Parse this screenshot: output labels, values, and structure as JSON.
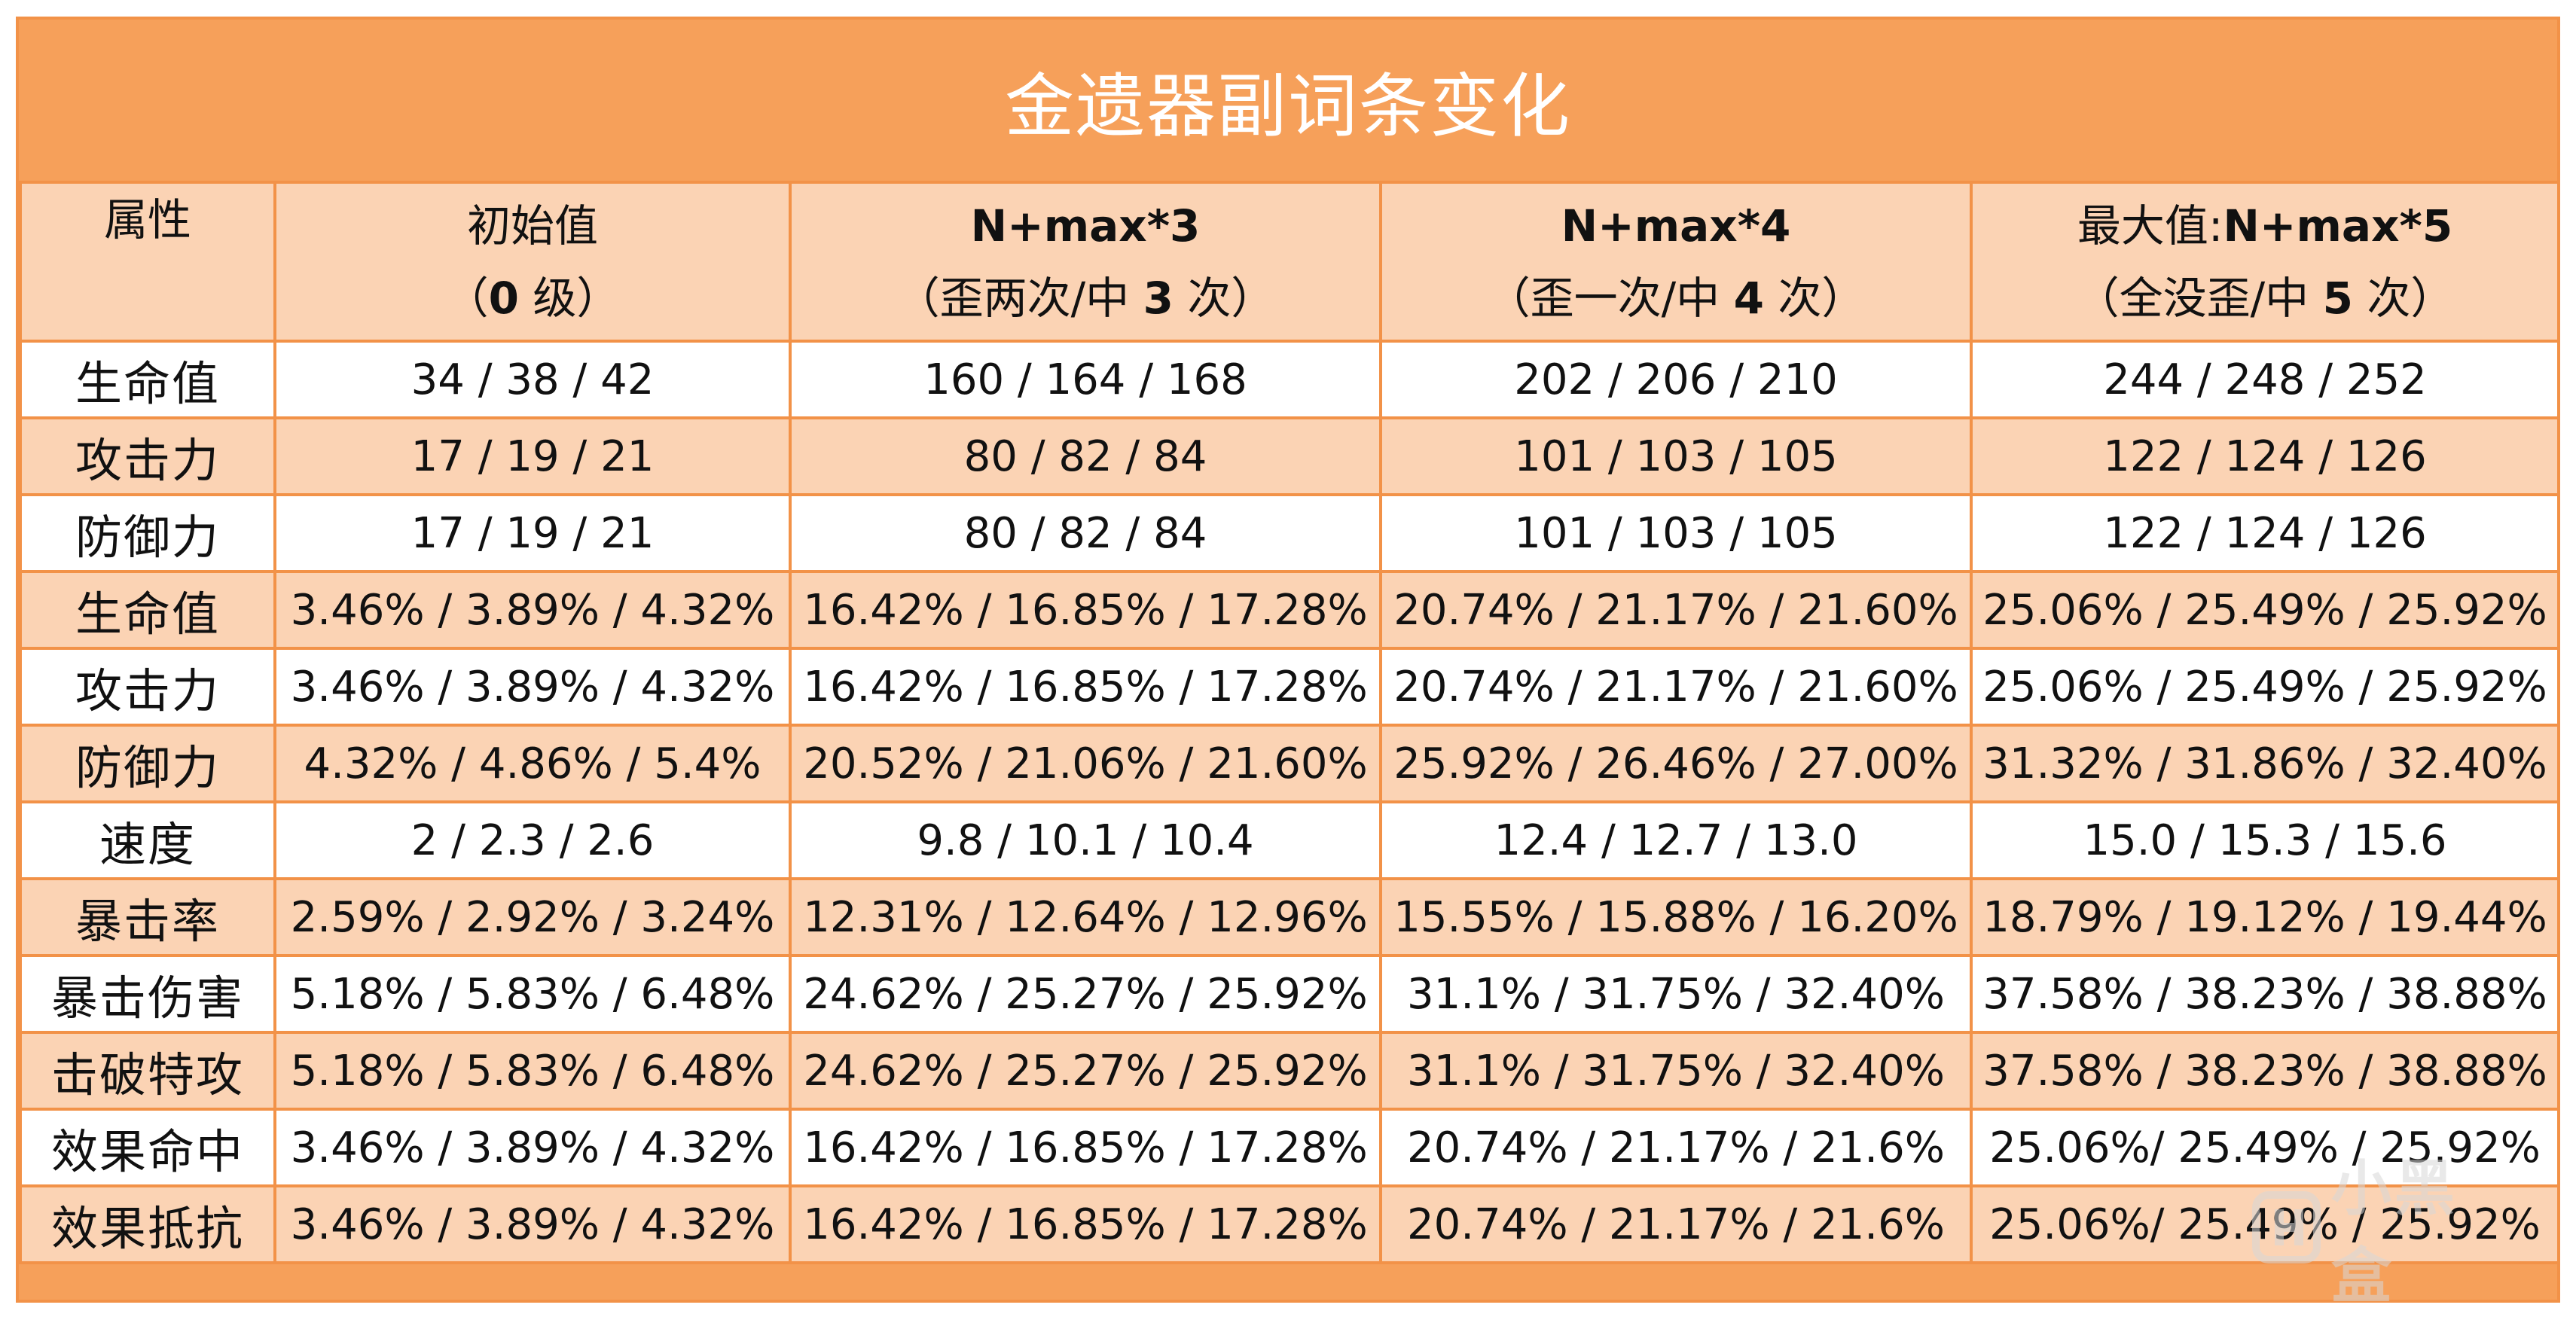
{
  "title": "金遗器副词条变化",
  "header": {
    "attr": {
      "line1": "属性",
      "line2": ""
    },
    "col1": {
      "line1": "初始值",
      "line2_pre": "（",
      "line2_bold": "0",
      "line2_post": " 级）"
    },
    "col2": {
      "line1": "N+max*3",
      "line2_pre": "（歪两次/",
      "line2_mid": "中 ",
      "line2_bold": "3",
      "line2_post": " 次）"
    },
    "col3": {
      "line1": "N+max*4",
      "line2_pre": "（歪一次/",
      "line2_mid": "中 ",
      "line2_bold": "4",
      "line2_post": " 次）"
    },
    "col4": {
      "line1_pre": "最大值:",
      "line1": "N+max*5",
      "line2_pre": "（全没歪/",
      "line2_mid": "中 ",
      "line2_bold": "5",
      "line2_post": " 次）"
    }
  },
  "rows": [
    {
      "attr": "生命值",
      "v0": "34 / 38 / 42",
      "v3": "160 / 164 / 168",
      "v4": "202 / 206 / 210",
      "v5": "244 / 248 / 252"
    },
    {
      "attr": "攻击力",
      "v0": "17 / 19 / 21",
      "v3": "80 / 82 / 84",
      "v4": "101 / 103 / 105",
      "v5": "122 / 124 / 126"
    },
    {
      "attr": "防御力",
      "v0": "17 / 19 / 21",
      "v3": "80 / 82 / 84",
      "v4": "101 / 103 / 105",
      "v5": "122 / 124 / 126"
    },
    {
      "attr": "生命值",
      "v0": "3.46% / 3.89% / 4.32%",
      "v3": "16.42% / 16.85% / 17.28%",
      "v4": "20.74% / 21.17% / 21.60%",
      "v5": "25.06% / 25.49% / 25.92%"
    },
    {
      "attr": "攻击力",
      "v0": "3.46% / 3.89% / 4.32%",
      "v3": "16.42% / 16.85% / 17.28%",
      "v4": "20.74% / 21.17% / 21.60%",
      "v5": "25.06% / 25.49% / 25.92%"
    },
    {
      "attr": "防御力",
      "v0": "4.32% / 4.86% / 5.4%",
      "v3": "20.52% / 21.06% / 21.60%",
      "v4": "25.92% / 26.46% / 27.00%",
      "v5": "31.32% / 31.86% / 32.40%"
    },
    {
      "attr": "速度",
      "v0": "2 / 2.3 / 2.6",
      "v3": "9.8 / 10.1 / 10.4",
      "v4": "12.4 / 12.7 / 13.0",
      "v5": "15.0 / 15.3 / 15.6"
    },
    {
      "attr": "暴击率",
      "v0": "2.59% / 2.92% / 3.24%",
      "v3": "12.31% / 12.64% / 12.96%",
      "v4": "15.55% / 15.88% / 16.20%",
      "v5": "18.79% / 19.12% / 19.44%"
    },
    {
      "attr": "暴击伤害",
      "v0": "5.18% / 5.83% / 6.48%",
      "v3": "24.62% / 25.27% / 25.92%",
      "v4": "31.1% / 31.75% / 32.40%",
      "v5": "37.58% / 38.23% / 38.88%"
    },
    {
      "attr": "击破特攻",
      "v0": "5.18% / 5.83% / 6.48%",
      "v3": "24.62% / 25.27% / 25.92%",
      "v4": "31.1% / 31.75% / 32.40%",
      "v5": "37.58% / 38.23% / 38.88%"
    },
    {
      "attr": "效果命中",
      "v0": "3.46% / 3.89% / 4.32%",
      "v3": "16.42% / 16.85% / 17.28%",
      "v4": "20.74% / 21.17% / 21.6%",
      "v5": "25.06%/ 25.49% / 25.92%"
    },
    {
      "attr": "效果抵抗",
      "v0": "3.46% / 3.89% / 4.32%",
      "v3": "16.42% / 16.85% / 17.28%",
      "v4": "20.74% / 21.17% / 21.6%",
      "v5": "25.06%/ 25.49% / 25.92%"
    }
  ],
  "watermark": {
    "text": "小黑盒",
    "icon": "heybox-logo-icon"
  },
  "colors": {
    "header_bg": "#f6a05a",
    "alt_row": "#fbd3b4",
    "border": "#f29248",
    "title_text": "#ffffff"
  }
}
